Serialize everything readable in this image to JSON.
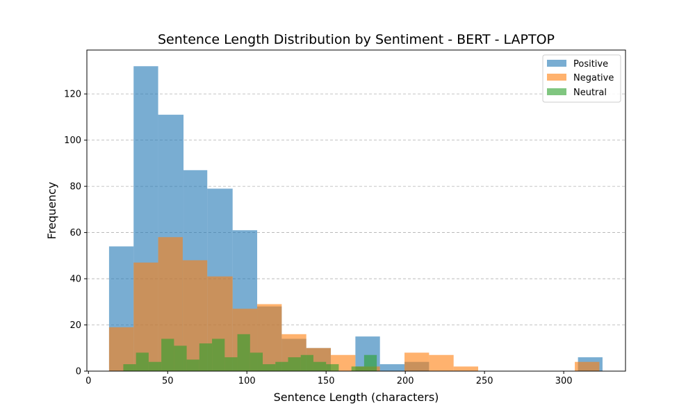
{
  "chart_data": {
    "type": "bar",
    "title": "Sentence Length Distribution by Sentiment - BERT - LAPTOP",
    "xlabel": "Sentence Length (characters)",
    "ylabel": "Frequency",
    "xlim": [
      -1,
      339
    ],
    "ylim": [
      0,
      139
    ],
    "xticks": [
      0,
      50,
      100,
      150,
      200,
      250,
      300
    ],
    "yticks": [
      0,
      20,
      40,
      60,
      80,
      100,
      120
    ],
    "grid": "y-dashed",
    "legend_position": "top-right",
    "series": [
      {
        "name": "Positive",
        "color": "#1f77b4",
        "opacity": 0.6,
        "bins": [
          {
            "x0": 13,
            "x1": 28.5,
            "value": 54
          },
          {
            "x0": 28.5,
            "x1": 44,
            "value": 132
          },
          {
            "x0": 44,
            "x1": 60,
            "value": 111
          },
          {
            "x0": 60,
            "x1": 75,
            "value": 87
          },
          {
            "x0": 75,
            "x1": 91,
            "value": 79
          },
          {
            "x0": 91,
            "x1": 106.5,
            "value": 61
          },
          {
            "x0": 106.5,
            "x1": 122,
            "value": 28
          },
          {
            "x0": 122,
            "x1": 137.5,
            "value": 14
          },
          {
            "x0": 137.5,
            "x1": 153,
            "value": 10
          },
          {
            "x0": 153,
            "x1": 168.5,
            "value": 0
          },
          {
            "x0": 168.5,
            "x1": 184,
            "value": 15
          },
          {
            "x0": 184,
            "x1": 199.5,
            "value": 3
          },
          {
            "x0": 199.5,
            "x1": 215,
            "value": 4
          },
          {
            "x0": 309,
            "x1": 324.5,
            "value": 6
          }
        ]
      },
      {
        "name": "Negative",
        "color": "#ff7f0e",
        "opacity": 0.6,
        "bins": [
          {
            "x0": 13,
            "x1": 28.5,
            "value": 19
          },
          {
            "x0": 28.5,
            "x1": 44,
            "value": 47
          },
          {
            "x0": 44,
            "x1": 59.5,
            "value": 58
          },
          {
            "x0": 59.5,
            "x1": 75,
            "value": 48
          },
          {
            "x0": 75,
            "x1": 91,
            "value": 41
          },
          {
            "x0": 91,
            "x1": 106.5,
            "value": 27
          },
          {
            "x0": 106.5,
            "x1": 122,
            "value": 29
          },
          {
            "x0": 122,
            "x1": 137.5,
            "value": 16
          },
          {
            "x0": 137.5,
            "x1": 153,
            "value": 10
          },
          {
            "x0": 153,
            "x1": 168.5,
            "value": 7
          },
          {
            "x0": 168.5,
            "x1": 184,
            "value": 2
          },
          {
            "x0": 184,
            "x1": 199.5,
            "value": 0
          },
          {
            "x0": 199.5,
            "x1": 215,
            "value": 8
          },
          {
            "x0": 215,
            "x1": 230.5,
            "value": 7
          },
          {
            "x0": 230.5,
            "x1": 246,
            "value": 2
          },
          {
            "x0": 307,
            "x1": 322.5,
            "value": 4
          }
        ]
      },
      {
        "name": "Neutral",
        "color": "#2ca02c",
        "opacity": 0.6,
        "bins": [
          {
            "x0": 22,
            "x1": 30,
            "value": 3
          },
          {
            "x0": 30,
            "x1": 38,
            "value": 8
          },
          {
            "x0": 38,
            "x1": 46,
            "value": 4
          },
          {
            "x0": 46,
            "x1": 54,
            "value": 14
          },
          {
            "x0": 54,
            "x1": 62,
            "value": 11
          },
          {
            "x0": 62,
            "x1": 70,
            "value": 5
          },
          {
            "x0": 70,
            "x1": 78,
            "value": 12
          },
          {
            "x0": 78,
            "x1": 86,
            "value": 14
          },
          {
            "x0": 86,
            "x1": 94,
            "value": 6
          },
          {
            "x0": 94,
            "x1": 102,
            "value": 16
          },
          {
            "x0": 102,
            "x1": 110,
            "value": 8
          },
          {
            "x0": 110,
            "x1": 118,
            "value": 3
          },
          {
            "x0": 118,
            "x1": 126,
            "value": 4
          },
          {
            "x0": 126,
            "x1": 134,
            "value": 6
          },
          {
            "x0": 134,
            "x1": 142,
            "value": 7
          },
          {
            "x0": 142,
            "x1": 150,
            "value": 4
          },
          {
            "x0": 150,
            "x1": 158,
            "value": 3
          },
          {
            "x0": 158,
            "x1": 166,
            "value": 0
          },
          {
            "x0": 166,
            "x1": 174,
            "value": 2
          },
          {
            "x0": 174,
            "x1": 182,
            "value": 7
          }
        ]
      }
    ]
  }
}
